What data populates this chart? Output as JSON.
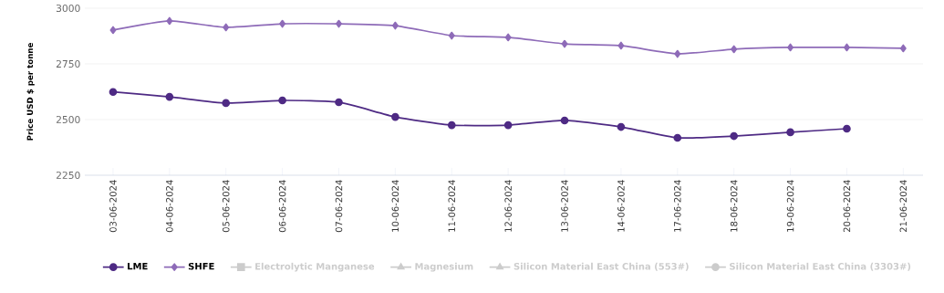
{
  "chart_data": {
    "type": "line",
    "ylabel": "Price USD  $ per tonne",
    "categories": [
      "03-06-2024",
      "04-06-2024",
      "05-06-2024",
      "06-06-2024",
      "07-06-2024",
      "10-06-2024",
      "11-06-2024",
      "12-06-2024",
      "13-06-2024",
      "14-06-2024",
      "17-06-2024",
      "18-06-2024",
      "19-06-2024",
      "20-06-2024",
      "21-06-2024"
    ],
    "series": [
      {
        "name": "LME",
        "color": "#4e2a84",
        "marker": "circle",
        "values": [
          2624,
          2602,
          2574,
          2586,
          2578,
          2512,
          2475,
          2475,
          2496,
          2467,
          2418,
          2426,
          2443,
          2459,
          null
        ]
      },
      {
        "name": "SHFE",
        "color": "#8e6bb8",
        "marker": "diamond",
        "values": [
          2902,
          2943,
          2914,
          2930,
          2930,
          2922,
          2877,
          2869,
          2840,
          2832,
          2795,
          2816,
          2824,
          2824,
          2820
        ]
      },
      {
        "name": "Electrolytic Manganese",
        "color": "#cccccc",
        "marker": "square",
        "values": [
          null,
          null,
          null,
          null,
          null,
          null,
          null,
          null,
          null,
          null,
          null,
          null,
          null,
          null,
          null
        ]
      },
      {
        "name": "Magnesium",
        "color": "#cccccc",
        "marker": "triangle",
        "values": [
          null,
          null,
          null,
          null,
          null,
          null,
          null,
          null,
          null,
          null,
          null,
          null,
          null,
          null,
          null
        ]
      },
      {
        "name": "Silicon Material East China (553#)",
        "color": "#cccccc",
        "marker": "triangle",
        "values": [
          null,
          null,
          null,
          null,
          null,
          null,
          null,
          null,
          null,
          null,
          null,
          null,
          null,
          null,
          null
        ]
      },
      {
        "name": "Silicon Material East China (3303#)",
        "color": "#cccccc",
        "marker": "circle",
        "values": [
          null,
          null,
          null,
          null,
          null,
          null,
          null,
          null,
          null,
          null,
          null,
          null,
          null,
          null,
          null
        ]
      }
    ],
    "ylim": [
      2250,
      3000
    ],
    "yticks": [
      2250,
      2500,
      2750,
      3000
    ],
    "grid": "y",
    "legend": "bottom",
    "line_style": "solid"
  }
}
